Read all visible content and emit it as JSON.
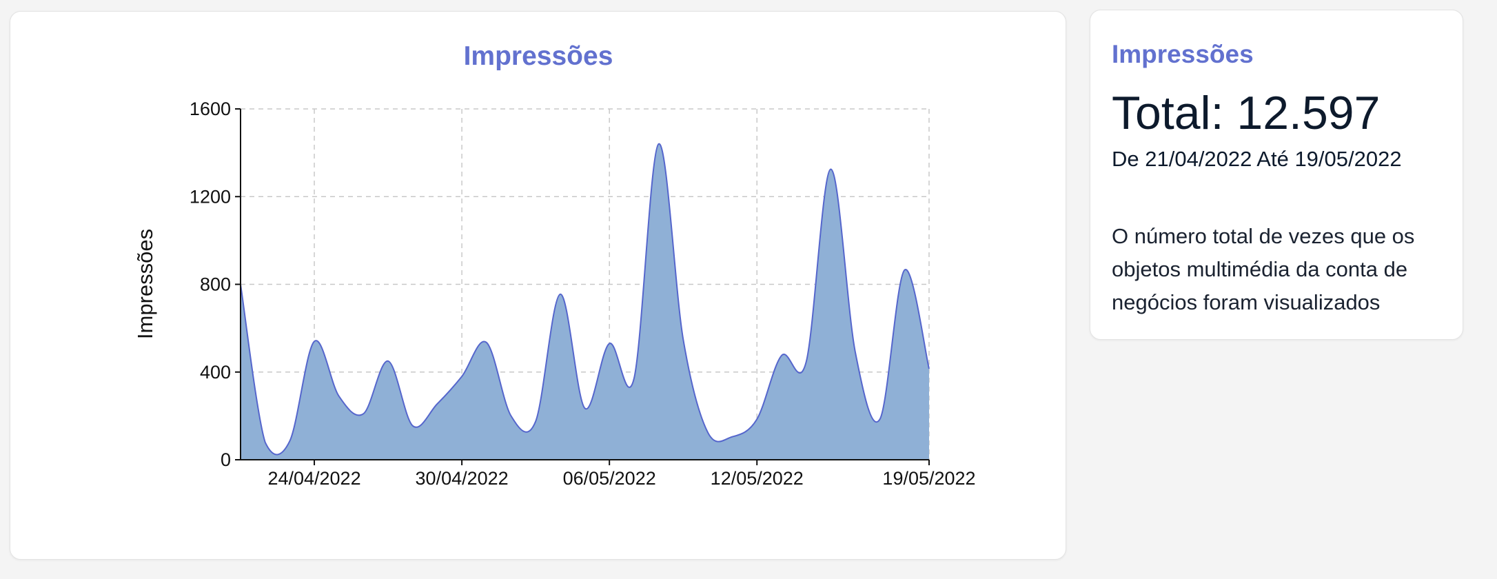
{
  "chart_card": {
    "title": "Impressões"
  },
  "info_card": {
    "title": "Impressões",
    "total": "Total: 12.597",
    "date_range": "De 21/04/2022 Até 19/05/2022",
    "description": "O número total de vezes que os objetos multimédia da conta de negócios foram visualizados"
  },
  "colors": {
    "accent": "#6271cf",
    "area_fill": "#8fb0d6",
    "area_stroke": "#5566cc",
    "grid": "#c8c8c8",
    "text_dark": "#0d1a2c"
  },
  "chart_data": {
    "type": "area",
    "title": "Impressões",
    "xlabel": "",
    "ylabel": "Impressões",
    "ylim": [
      0,
      1600
    ],
    "xlim": [
      "21/04/2022",
      "19/05/2022"
    ],
    "yticks": [
      0,
      400,
      800,
      1200,
      1600
    ],
    "xticks": [
      "24/04/2022",
      "30/04/2022",
      "06/05/2022",
      "12/05/2022",
      "19/05/2022"
    ],
    "grid": true,
    "series": [
      {
        "x": [
          "21/04/2022",
          "22/04/2022",
          "23/04/2022",
          "24/04/2022",
          "25/04/2022",
          "26/04/2022",
          "27/04/2022",
          "28/04/2022",
          "29/04/2022",
          "30/04/2022",
          "01/05/2022",
          "02/05/2022",
          "03/05/2022",
          "04/05/2022",
          "05/05/2022",
          "06/05/2022",
          "07/05/2022",
          "08/05/2022",
          "09/05/2022",
          "10/05/2022",
          "11/05/2022",
          "12/05/2022",
          "13/05/2022",
          "14/05/2022",
          "15/05/2022",
          "16/05/2022",
          "17/05/2022",
          "18/05/2022",
          "19/05/2022"
        ],
        "values": [
          800,
          80,
          85,
          540,
          290,
          210,
          450,
          155,
          255,
          380,
          535,
          200,
          175,
          755,
          235,
          530,
          370,
          1440,
          550,
          125,
          105,
          185,
          475,
          445,
          1325,
          490,
          185,
          865,
          415
        ]
      }
    ]
  }
}
